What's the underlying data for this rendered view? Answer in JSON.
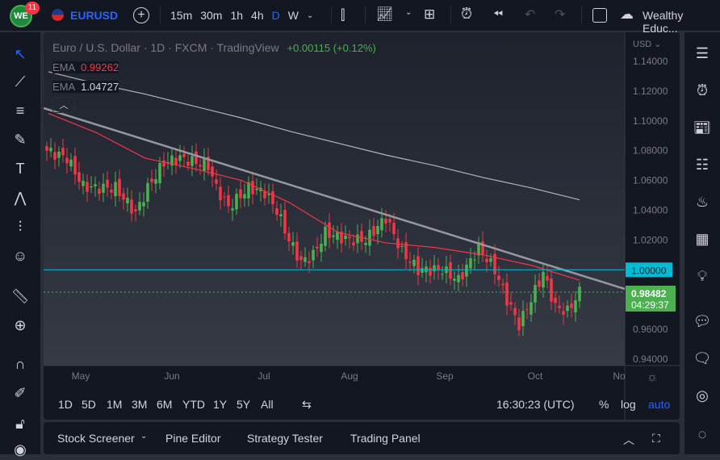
{
  "header": {
    "badge_count": "11",
    "symbol": "EURUSD",
    "intervals": [
      "15m",
      "30m",
      "1h",
      "4h",
      "D",
      "W"
    ],
    "active_interval": "D",
    "account": "Wealthy Educ..."
  },
  "legend": {
    "title": "Euro / U.S. Dollar · 1D · FXCM · TradingView",
    "change": "+0.00115 (+0.12%)",
    "ema1_label": "EMA",
    "ema1_value": "0.99262",
    "ema2_label": "EMA",
    "ema2_value": "1.04727"
  },
  "price_axis": {
    "currency": "USD",
    "ticks": [
      "1.14000",
      "1.12000",
      "1.10000",
      "1.08000",
      "1.06000",
      "1.04000",
      "1.02000",
      "1.00000",
      "0.96000",
      "0.94000"
    ],
    "line_label": "1.00000",
    "last_price": "0.98482",
    "countdown": "04:29:37"
  },
  "time_axis": {
    "ticks": [
      "May",
      "Jun",
      "Jul",
      "Aug",
      "Sep",
      "Oct",
      "No"
    ]
  },
  "colors": {
    "up": "#26a69a",
    "up_candle": "#4caf50",
    "down": "#f23645",
    "ema_fast": "#f23645",
    "ema_slow": "#b2b5be",
    "level_line": "#00bcd4",
    "bg": "#131722"
  },
  "chart": {
    "price_path": [
      [
        0,
        1.08
      ],
      [
        5,
        1.075
      ],
      [
        9,
        1.056
      ],
      [
        12,
        1.055
      ],
      [
        17,
        1.055
      ],
      [
        22,
        1.038
      ],
      [
        25,
        1.055
      ],
      [
        29,
        1.072
      ],
      [
        33,
        1.075
      ],
      [
        40,
        1.07
      ],
      [
        42,
        1.055
      ],
      [
        45,
        1.042
      ],
      [
        50,
        1.055
      ],
      [
        54,
        1.052
      ],
      [
        57,
        1.04
      ],
      [
        60,
        1.02
      ],
      [
        63,
        1.005
      ],
      [
        66,
        1.01
      ],
      [
        69,
        1.025
      ],
      [
        75,
        1.02
      ],
      [
        79,
        1.02
      ],
      [
        84,
        1.035
      ],
      [
        88,
        1.012
      ],
      [
        92,
        1.0
      ],
      [
        98,
        1.0
      ],
      [
        102,
        0.993
      ],
      [
        107,
        1.015
      ],
      [
        111,
        1.0
      ],
      [
        114,
        0.98
      ],
      [
        117,
        0.963
      ],
      [
        120,
        0.98
      ],
      [
        123,
        0.998
      ],
      [
        126,
        0.975
      ],
      [
        129,
        0.972
      ],
      [
        132,
        0.985
      ]
    ],
    "ema_fast_path": [
      1.105,
      1.092,
      1.075,
      1.068,
      1.06,
      1.045,
      1.025,
      1.018,
      1.015,
      1.01,
      1.003,
      0.993
    ],
    "ema_slow_path": [
      1.133,
      1.125,
      1.118,
      1.11,
      1.102,
      1.093,
      1.085,
      1.077,
      1.07,
      1.062,
      1.055,
      1.047
    ],
    "level": 1.0
  },
  "bottom": {
    "ranges": [
      "1D",
      "5D",
      "1M",
      "3M",
      "6M",
      "YTD",
      "1Y",
      "5Y",
      "All"
    ],
    "clock": "16:30:23 (UTC)",
    "pct": "%",
    "log": "log",
    "auto": "auto"
  },
  "panel": {
    "tabs": [
      "Stock Screener",
      "Pine Editor",
      "Strategy Tester",
      "Trading Panel"
    ]
  }
}
